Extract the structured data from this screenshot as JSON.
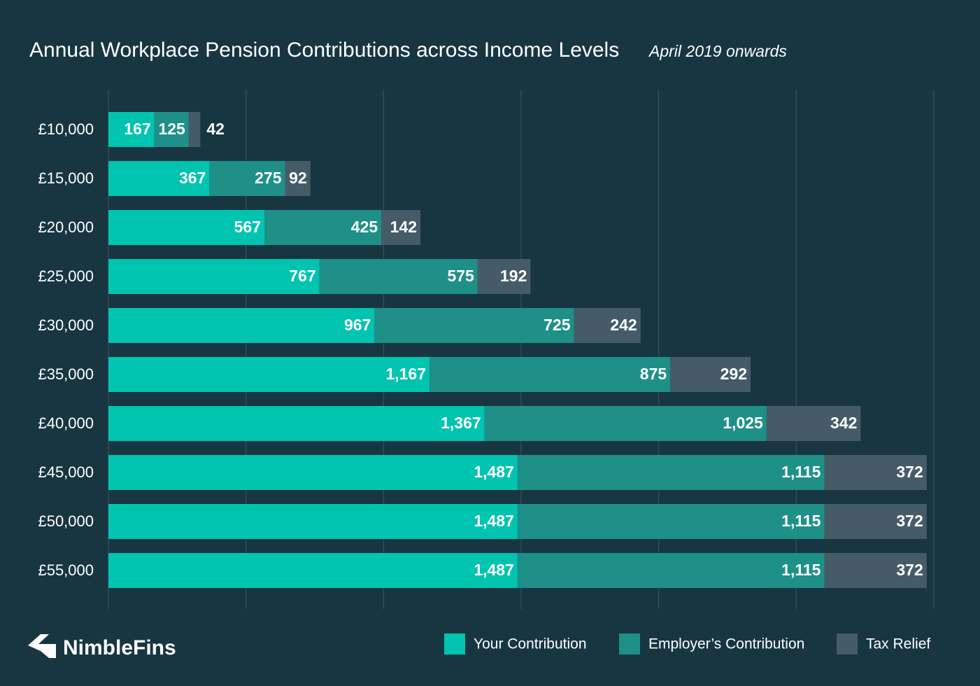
{
  "chart_data": {
    "type": "bar",
    "orientation": "horizontal",
    "stacked": true,
    "title": "Annual Workplace Pension Contributions across Income Levels",
    "subtitle": "April 2019 onwards",
    "logo": "NimbleFins",
    "categories": [
      "£10,000",
      "£15,000",
      "£20,000",
      "£25,000",
      "£30,000",
      "£35,000",
      "£40,000",
      "£45,000",
      "£50,000",
      "£55,000"
    ],
    "series": [
      {
        "name": "Your Contribution",
        "color": "#00c4b0",
        "values": [
          167,
          367,
          567,
          767,
          967,
          1167,
          1367,
          1487,
          1487,
          1487
        ],
        "value_labels": [
          "167",
          "367",
          "567",
          "767",
          "967",
          "1,167",
          "1,367",
          "1,487",
          "1,487",
          "1,487"
        ]
      },
      {
        "name": "Employer’s Contribution",
        "color": "#1e9088",
        "values": [
          125,
          275,
          425,
          575,
          725,
          875,
          1025,
          1115,
          1115,
          1115
        ],
        "value_labels": [
          "125",
          "275",
          "425",
          "575",
          "725",
          "875",
          "1,025",
          "1,115",
          "1,115",
          "1,115"
        ]
      },
      {
        "name": "Tax Relief",
        "color": "#455c68",
        "values": [
          42,
          92,
          142,
          192,
          242,
          292,
          342,
          372,
          372,
          372
        ],
        "value_labels": [
          "42",
          "92",
          "142",
          "192",
          "242",
          "292",
          "342",
          "372",
          "372",
          "372"
        ]
      }
    ],
    "xlim": [
      0,
      3000
    ],
    "xticks": [
      0,
      500,
      1000,
      1500,
      2000,
      2500,
      3000
    ],
    "grid": true
  }
}
